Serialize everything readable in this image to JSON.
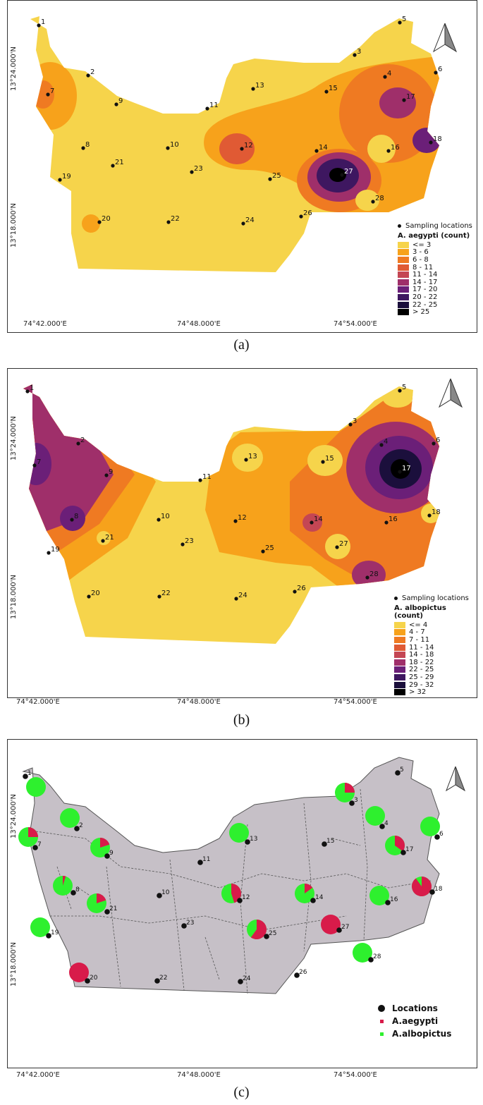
{
  "coords": {
    "lon": [
      "74°42.000'E",
      "74°48.000'E",
      "74°54.000'E"
    ],
    "lat": [
      "13°24.000'N",
      "13°18.000'N"
    ]
  },
  "colors": {
    "ramp": [
      "#f6d44b",
      "#f7a21b",
      "#ef7a22",
      "#e05a34",
      "#c44654",
      "#9f2f6a",
      "#6b1f78",
      "#3e1760",
      "#1b0f3c",
      "#000000"
    ],
    "base_map": "#c6c0c7",
    "aegypti": "#d81b4a",
    "albopictus": "#2ef02e"
  },
  "panel_a": {
    "caption": "(a)",
    "legend_points": "Sampling locations",
    "legend_title": "A. aegypti (count)",
    "classes": [
      "<= 3",
      "3 - 6",
      "6 - 8",
      "8 - 11",
      "11 - 14",
      "14 - 17",
      "17 - 20",
      "20 - 22",
      "22 - 25",
      "> 25"
    ]
  },
  "panel_b": {
    "caption": "(b)",
    "legend_points": "Sampling locations",
    "legend_title": "A. albopictus (count)",
    "classes": [
      "<= 4",
      "4 - 7",
      "7 - 11",
      "11 - 14",
      "14 - 18",
      "18 - 22",
      "22 - 25",
      "25 - 29",
      "29 - 32",
      "> 32"
    ]
  },
  "panel_c": {
    "caption": "(c)",
    "legend": [
      "Locations",
      "A.aegypti",
      "A.albopictus"
    ]
  },
  "site_labels": [
    "1",
    "2",
    "3",
    "4",
    "5",
    "6",
    "7",
    "8",
    "9",
    "10",
    "11",
    "12",
    "13",
    "14",
    "15",
    "16",
    "17",
    "18",
    "19",
    "20",
    "21",
    "22",
    "23",
    "24",
    "25",
    "26",
    "27",
    "28"
  ],
  "sites_pie_fraction_aegypti": {
    "1": 0,
    "2": 0,
    "3": 0.25,
    "4": 0,
    "6": 0,
    "7": 0.25,
    "8": 0.05,
    "9": 0.2,
    "12": 0.45,
    "13": 0,
    "14": 0.15,
    "16": 0,
    "17": 0.35,
    "18": 0.9,
    "19": 0,
    "20": 1,
    "21": 0.2,
    "25": 0.6,
    "27": 1,
    "28": 0
  }
}
